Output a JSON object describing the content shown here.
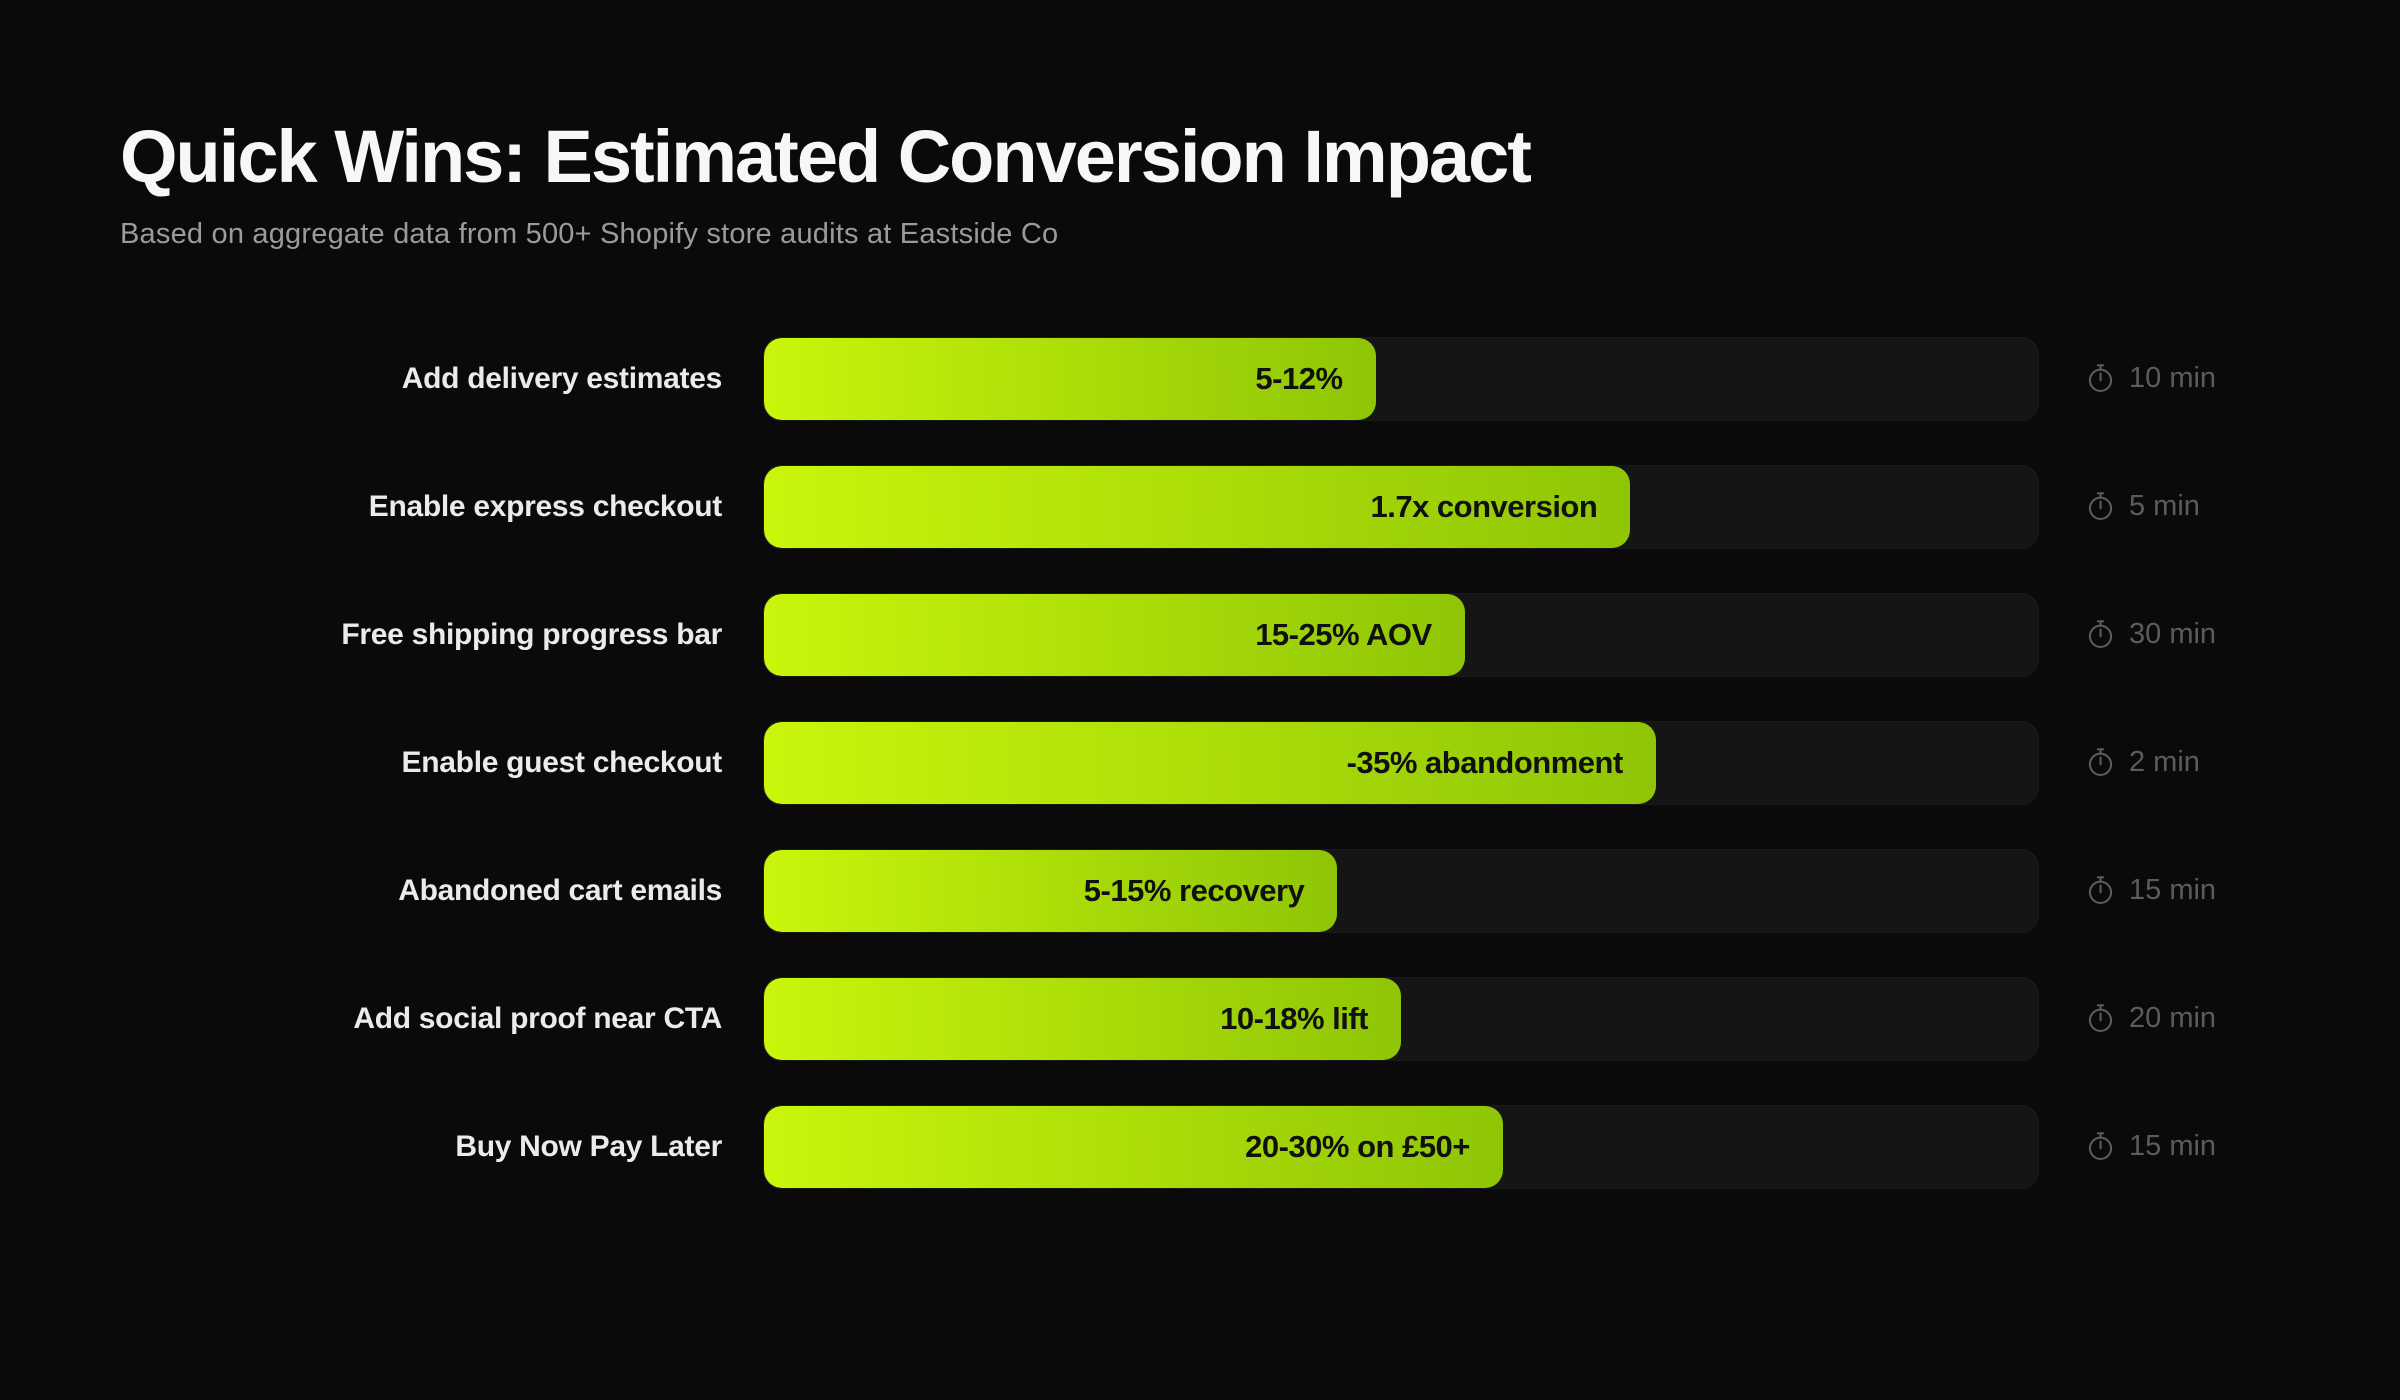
{
  "page": {
    "title": "Quick Wins: Estimated Conversion Impact",
    "subtitle": "Based on aggregate data from 500+ Shopify store audits at Eastside Co"
  },
  "colors": {
    "background": "#0a0a0b",
    "track": "#151515",
    "bar_gradient_start": "#c9f60b",
    "bar_gradient_end": "#8fc506",
    "title_text": "#f7f7f7",
    "subtitle_text": "#9b9b9b",
    "label_text": "#ebebeb",
    "value_text": "#101010",
    "time_text": "#5c5c5c"
  },
  "rows": [
    {
      "label": "Add delivery estimates",
      "value": "5-12%",
      "time": "10 min",
      "bar_percent": 48
    },
    {
      "label": "Enable express checkout",
      "value": "1.7x conversion",
      "time": "5 min",
      "bar_percent": 68
    },
    {
      "label": "Free shipping progress bar",
      "value": "15-25% AOV",
      "time": "30 min",
      "bar_percent": 55
    },
    {
      "label": "Enable guest checkout",
      "value": "-35% abandonment",
      "time": "2 min",
      "bar_percent": 70
    },
    {
      "label": "Abandoned cart emails",
      "value": "5-15% recovery",
      "time": "15 min",
      "bar_percent": 45
    },
    {
      "label": "Add social proof near CTA",
      "value": "10-18% lift",
      "time": "20 min",
      "bar_percent": 50
    },
    {
      "label": "Buy Now Pay Later",
      "value": "20-30% on £50+",
      "time": "15 min",
      "bar_percent": 58
    }
  ],
  "chart_data": {
    "type": "bar",
    "orientation": "horizontal",
    "title": "Quick Wins: Estimated Conversion Impact",
    "subtitle": "Based on aggregate data from 500+ Shopify store audits at Eastside Co",
    "categories": [
      "Add delivery estimates",
      "Enable express checkout",
      "Free shipping progress bar",
      "Enable guest checkout",
      "Abandoned cart emails",
      "Add social proof near CTA",
      "Buy Now Pay Later"
    ],
    "series": [
      {
        "name": "Estimated conversion impact (bar length, % of track)",
        "values": [
          48,
          68,
          55,
          70,
          45,
          50,
          58
        ]
      }
    ],
    "value_labels": [
      "5-12%",
      "1.7x conversion",
      "15-25% AOV",
      "-35% abandonment",
      "5-15% recovery",
      "10-18% lift",
      "20-30% on £50+"
    ],
    "annotations": [
      "10 min",
      "5 min",
      "30 min",
      "2 min",
      "15 min",
      "20 min",
      "15 min"
    ],
    "xlim": [
      0,
      100
    ],
    "grid": false,
    "legend": false,
    "bar_color_gradient": [
      "#c9f60b",
      "#8fc506"
    ],
    "track_color": "#151515",
    "background": "#0a0a0b"
  }
}
